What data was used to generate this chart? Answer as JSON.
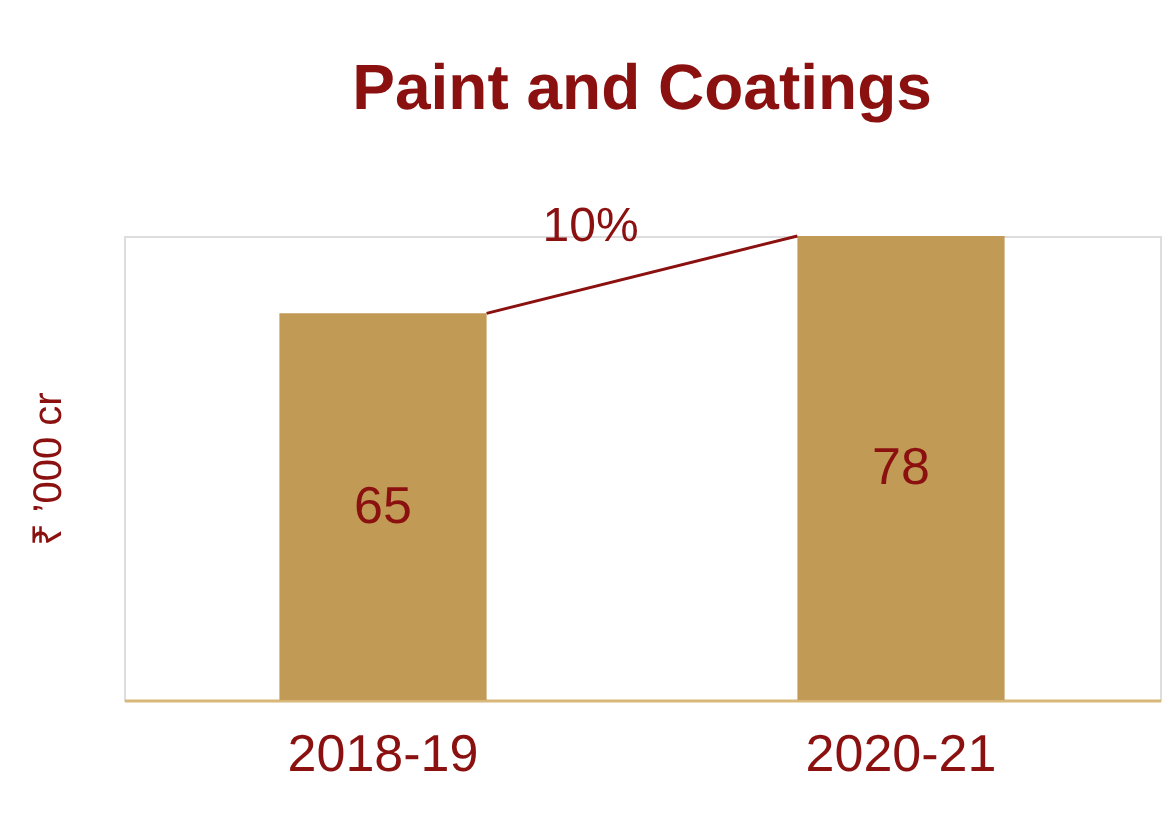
{
  "chart_data": {
    "type": "bar",
    "title": "Paint and Coatings",
    "ylabel": "₹ ’000 cr",
    "categories": [
      "2018-19",
      "2020-21"
    ],
    "values": [
      65,
      78
    ],
    "color": "#c19a56",
    "data_labels": true,
    "grid": false,
    "tick_labels": "x",
    "annotations": [
      "10%"
    ]
  }
}
